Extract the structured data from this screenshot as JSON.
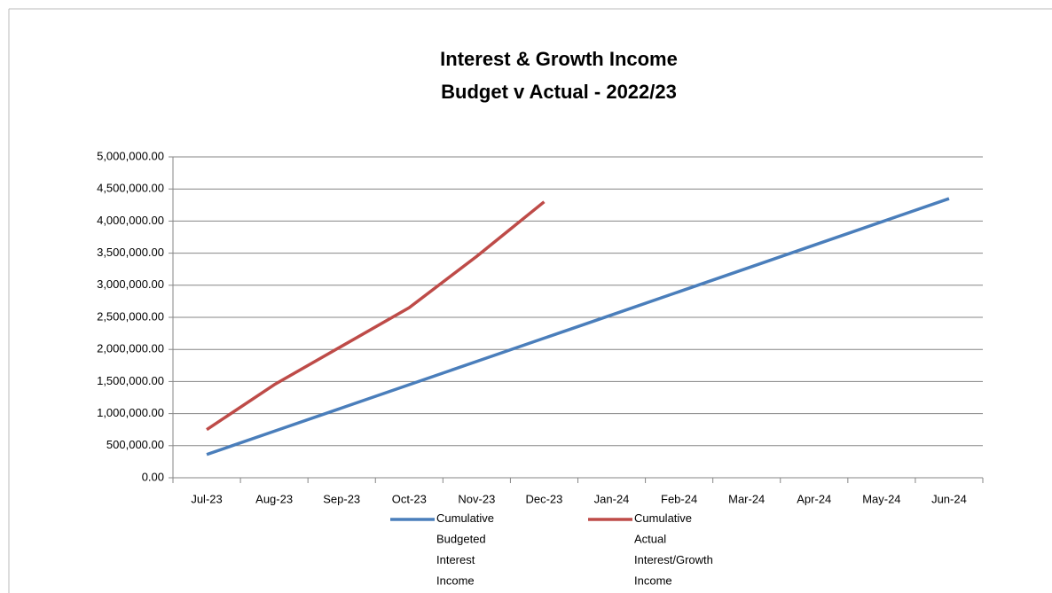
{
  "chart_data": {
    "type": "line",
    "title": "Interest & Growth Income",
    "subtitle": "Budget v Actual  -  2022/23",
    "categories": [
      "Jul-23",
      "Aug-23",
      "Sep-23",
      "Oct-23",
      "Nov-23",
      "Dec-23",
      "Jan-24",
      "Feb-24",
      "Mar-24",
      "Apr-24",
      "May-24",
      "Jun-24"
    ],
    "series": [
      {
        "name": "Cumulative Budgeted Interest Income",
        "color": "#4a7ebb",
        "values": [
          362500,
          725000,
          1087500,
          1450000,
          1812500,
          2175000,
          2537500,
          2900000,
          3262500,
          3625000,
          3987500,
          4350000
        ]
      },
      {
        "name": "Cumulative Actual Interest/Growth Income",
        "color": "#be4b48",
        "values": [
          750000,
          1450000,
          2050000,
          2650000,
          3450000,
          4300000,
          null,
          null,
          null,
          null,
          null,
          null
        ]
      }
    ],
    "ylim": [
      0,
      5000000
    ],
    "yticks": [
      {
        "value": 0,
        "label": "0.00"
      },
      {
        "value": 500000,
        "label": "500,000.00"
      },
      {
        "value": 1000000,
        "label": "1,000,000.00"
      },
      {
        "value": 1500000,
        "label": "1,500,000.00"
      },
      {
        "value": 2000000,
        "label": "2,000,000.00"
      },
      {
        "value": 2500000,
        "label": "2,500,000.00"
      },
      {
        "value": 3000000,
        "label": "3,000,000.00"
      },
      {
        "value": 3500000,
        "label": "3,500,000.00"
      },
      {
        "value": 4000000,
        "label": "4,000,000.00"
      },
      {
        "value": 4500000,
        "label": "4,500,000.00"
      },
      {
        "value": 5000000,
        "label": "5,000,000.00"
      }
    ],
    "grid": true,
    "legend": "bottom"
  }
}
